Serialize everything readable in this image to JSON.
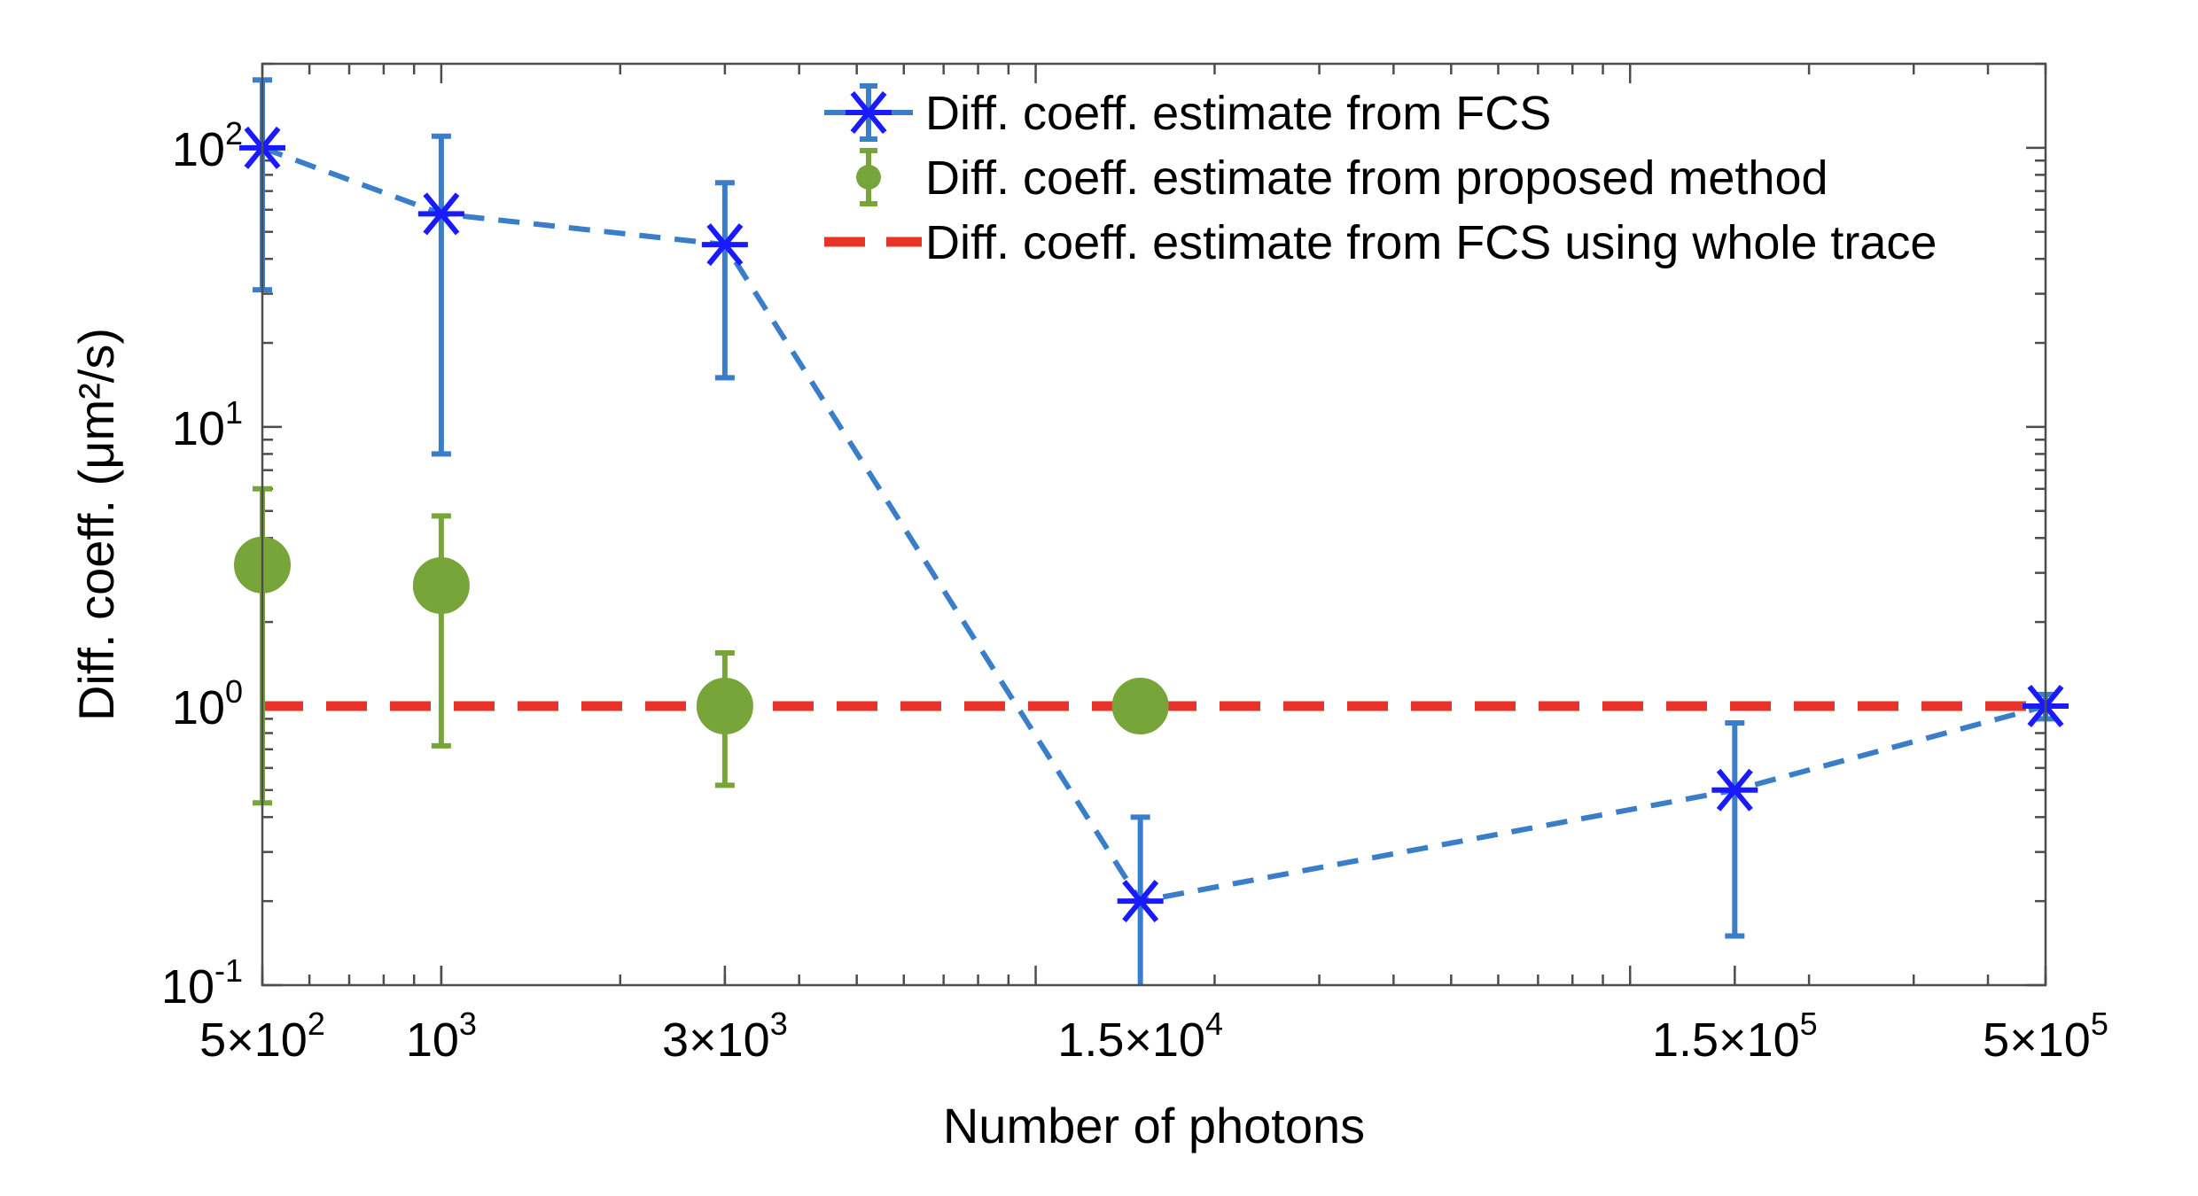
{
  "chart_data": {
    "type": "line",
    "title": "",
    "xlabel": "Number of photons",
    "ylabel": "Diff. coeff. (μm²/s)",
    "xscale": "log",
    "yscale": "log",
    "xlim": [
      500,
      500000
    ],
    "ylim": [
      0.1,
      200
    ],
    "xticks": [
      {
        "value": 500,
        "mantissa": "5×",
        "base": "10",
        "exp": "2"
      },
      {
        "value": 1000,
        "mantissa": "",
        "base": "10",
        "exp": "3"
      },
      {
        "value": 3000,
        "mantissa": "3×",
        "base": "10",
        "exp": "3"
      },
      {
        "value": 15000,
        "mantissa": "1.5×",
        "base": "10",
        "exp": "4"
      },
      {
        "value": 150000,
        "mantissa": "1.5×",
        "base": "10",
        "exp": "5"
      },
      {
        "value": 500000,
        "mantissa": "5×",
        "base": "10",
        "exp": "5"
      }
    ],
    "yticks": [
      {
        "value": 0.1,
        "base": "10",
        "exp": "-1"
      },
      {
        "value": 1,
        "base": "10",
        "exp": "0"
      },
      {
        "value": 10,
        "base": "10",
        "exp": "1"
      },
      {
        "value": 100,
        "base": "10",
        "exp": "2"
      }
    ],
    "legend_position": "top-right",
    "grid": false,
    "series": [
      {
        "name": "Diff. coeff. estimate from FCS",
        "style": "dashed-line-star-errorbar",
        "color": "#3a7dc9",
        "marker_color": "#1a1aff",
        "points": [
          {
            "x": 500,
            "y": 100,
            "low": 31,
            "high": 175
          },
          {
            "x": 1000,
            "y": 58,
            "low": 8,
            "high": 110
          },
          {
            "x": 3000,
            "y": 45,
            "low": 15,
            "high": 75
          },
          {
            "x": 15000,
            "y": 0.2,
            "low": 0.1,
            "high": 0.4
          },
          {
            "x": 150000,
            "y": 0.5,
            "low": 0.15,
            "high": 0.87
          },
          {
            "x": 500000,
            "y": 1.0,
            "low": 0.9,
            "high": 1.1
          }
        ]
      },
      {
        "name": "Diff. coeff. estimate from proposed method",
        "style": "circle-errorbar",
        "color": "#77a53a",
        "points": [
          {
            "x": 500,
            "y": 3.2,
            "low": 0.45,
            "high": 6.0
          },
          {
            "x": 1000,
            "y": 2.7,
            "low": 0.72,
            "high": 4.8
          },
          {
            "x": 3000,
            "y": 1.0,
            "low": 0.52,
            "high": 1.55
          },
          {
            "x": 15000,
            "y": 1.0,
            "low": 0.97,
            "high": 1.03
          }
        ]
      },
      {
        "name": "Diff. coeff. estimate from FCS using whole trace",
        "style": "dashed-hline",
        "color": "#e8332a",
        "y": 1.0
      }
    ]
  }
}
